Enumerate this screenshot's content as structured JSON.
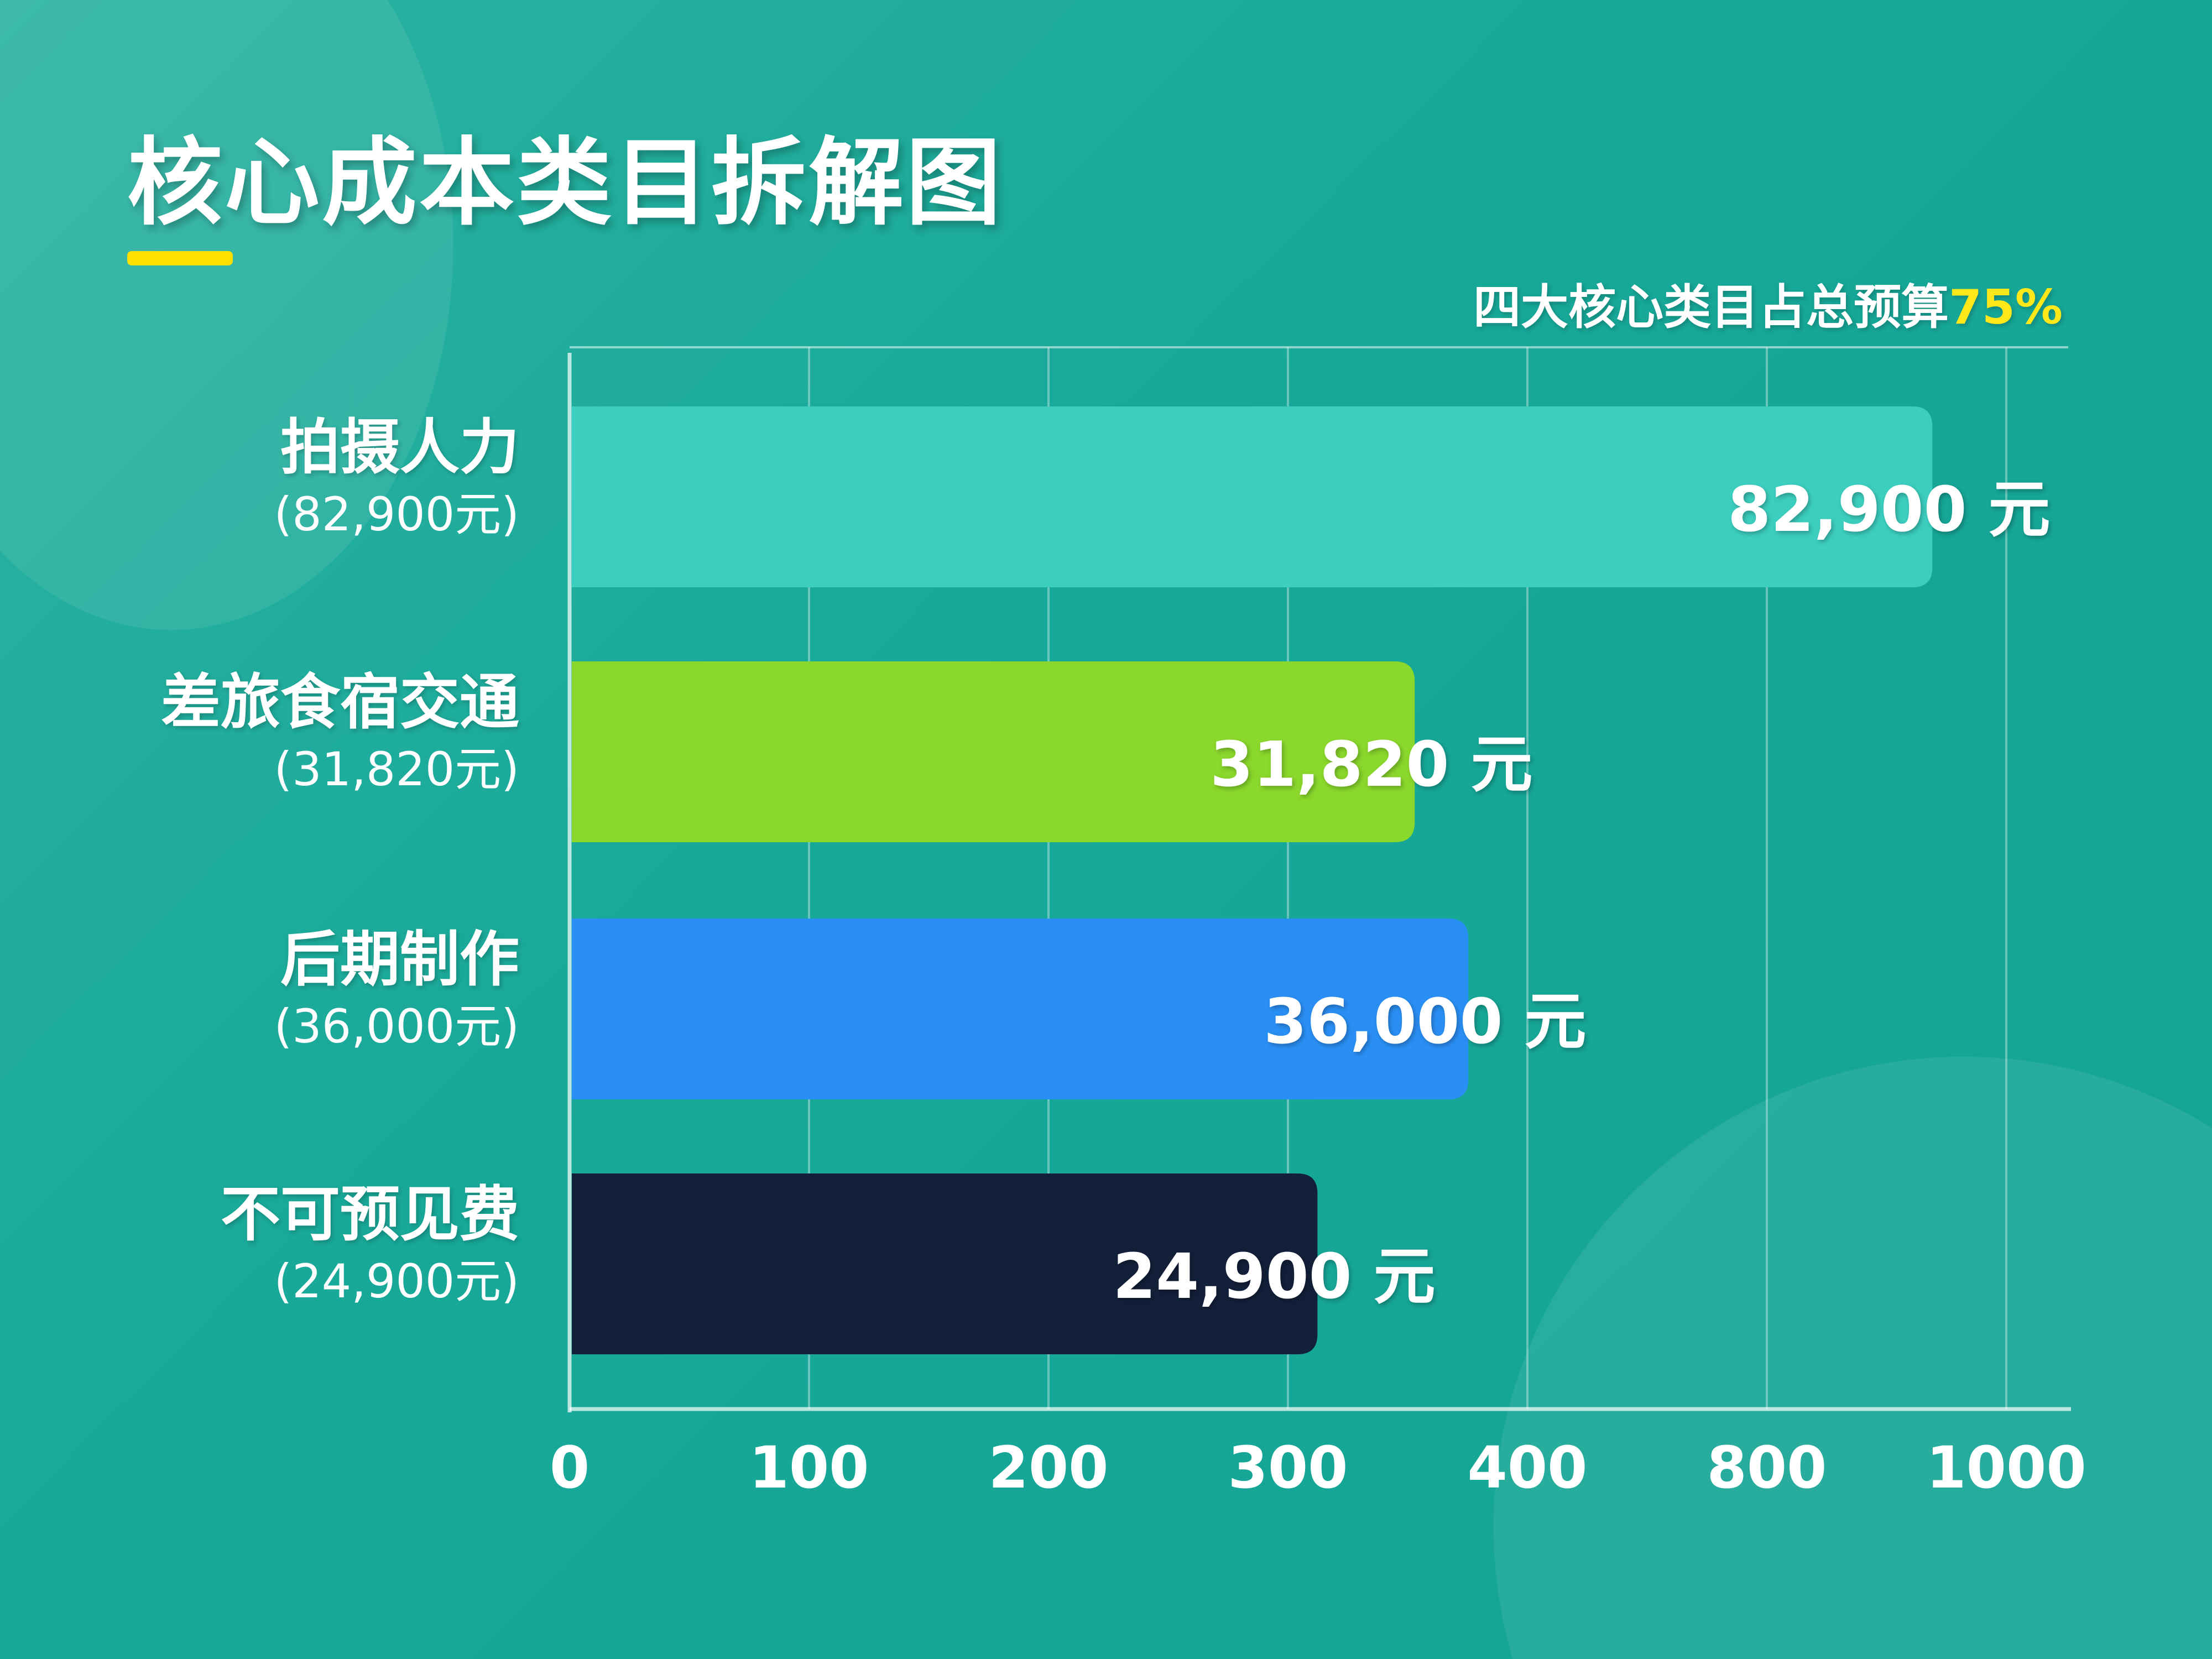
{
  "title": "核心成本类目拆解图",
  "subtitle": {
    "text": "四大核心类目占总预算",
    "highlight": "75%"
  },
  "colors": {
    "background": "#17a898",
    "accent": "#ffe000"
  },
  "chart_data": {
    "type": "bar",
    "orientation": "horizontal",
    "title": "核心成本类目拆解图",
    "categories": [
      "拍摄人力",
      "差旅食宿交通",
      "后期制作",
      "不可预见费"
    ],
    "category_sublabels": [
      "(82,900元)",
      "(31,820元)",
      "(36,000元)",
      "(24,900元)"
    ],
    "values": [
      82900,
      31820,
      36000,
      24900
    ],
    "value_labels": [
      "82,900 元",
      "31,820 元",
      "36,000 元",
      "24,900 元"
    ],
    "bar_colors": [
      "#3ccfbf",
      "#8ad82c",
      "#2a8ff5",
      "#13203a"
    ],
    "x_tick_labels": [
      "0",
      "100",
      "200",
      "300",
      "400",
      "800",
      "1000"
    ],
    "unit": "元",
    "grid": true,
    "xlabel": "",
    "ylabel": ""
  }
}
